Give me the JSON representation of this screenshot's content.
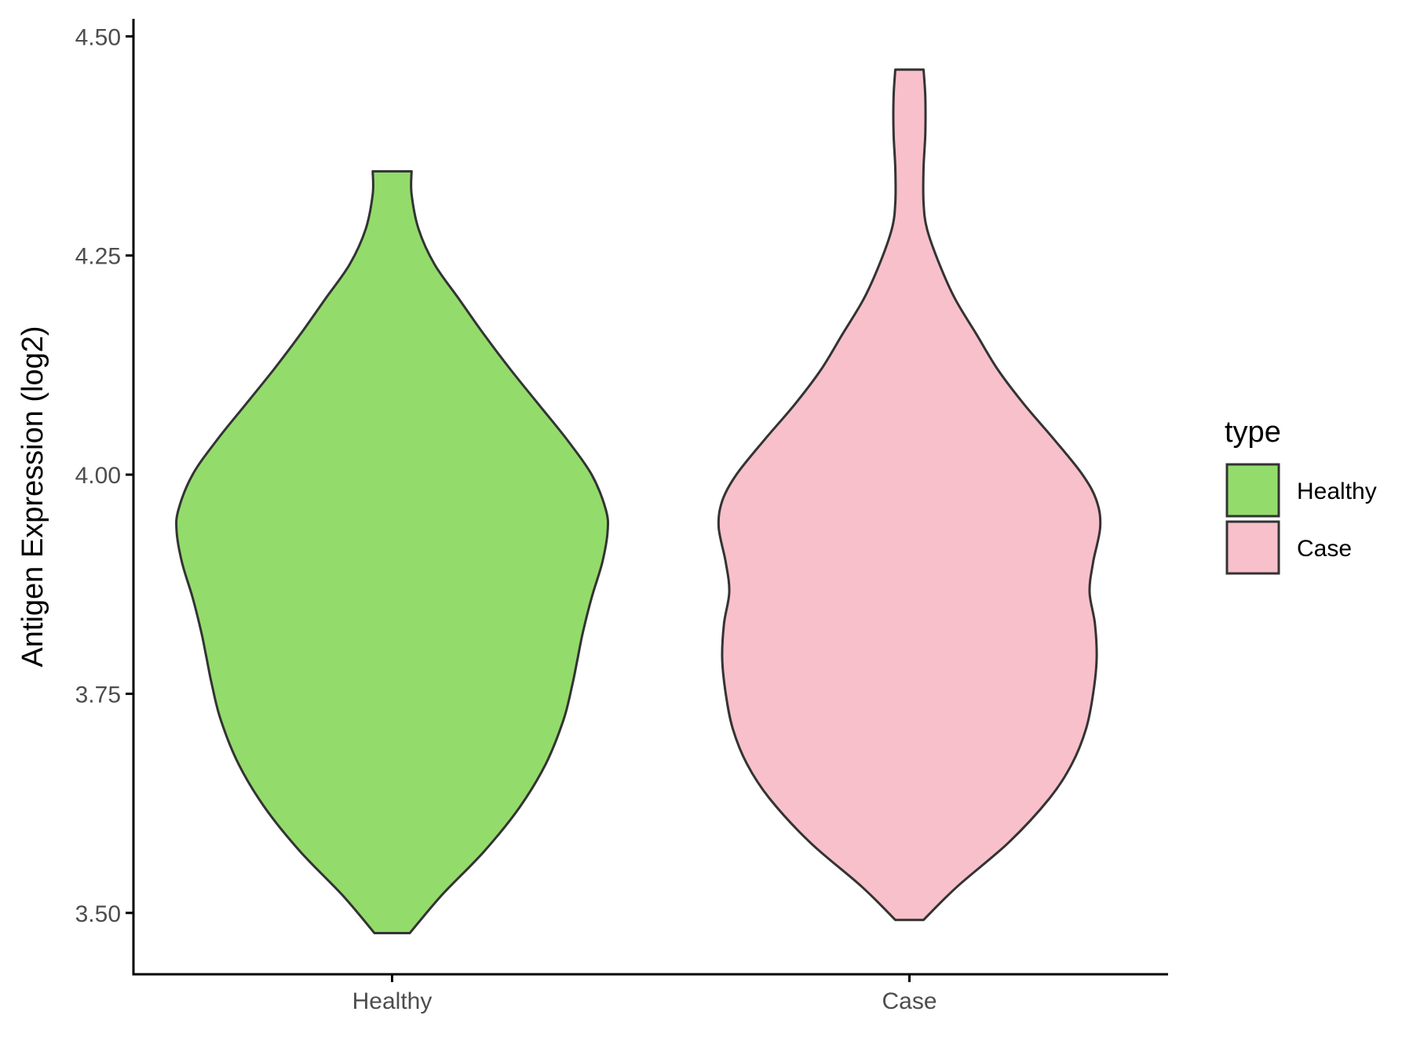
{
  "chart_data": {
    "type": "violin",
    "ylabel": "Antigen Expression (log2)",
    "xlabel": "",
    "categories": [
      "Healthy",
      "Case"
    ],
    "ylim": [
      3.43,
      4.52
    ],
    "yticks": [
      3.5,
      3.75,
      4.0,
      4.25,
      4.5
    ],
    "ytick_labels": [
      "3.50",
      "3.75",
      "4.00",
      "4.25",
      "4.50"
    ],
    "grid": false,
    "legend": {
      "title": "type",
      "position": "right",
      "entries": [
        {
          "label": "Healthy",
          "color": "#93dc6b"
        },
        {
          "label": "Case",
          "color": "#f8c0cb"
        }
      ]
    },
    "series": [
      {
        "category": "Healthy",
        "color": "#93dc6b",
        "min": 3.477,
        "max": 4.346,
        "profile": [
          [
            3.477,
            0.1
          ],
          [
            3.52,
            0.28
          ],
          [
            3.57,
            0.52
          ],
          [
            3.62,
            0.72
          ],
          [
            3.67,
            0.87
          ],
          [
            3.72,
            0.97
          ],
          [
            3.76,
            1.02
          ],
          [
            3.79,
            1.05
          ],
          [
            3.82,
            1.08
          ],
          [
            3.86,
            1.13
          ],
          [
            3.9,
            1.19
          ],
          [
            3.935,
            1.22
          ],
          [
            3.96,
            1.21
          ],
          [
            4.0,
            1.13
          ],
          [
            4.04,
            0.99
          ],
          [
            4.08,
            0.83
          ],
          [
            4.12,
            0.67
          ],
          [
            4.16,
            0.52
          ],
          [
            4.2,
            0.38
          ],
          [
            4.24,
            0.24
          ],
          [
            4.28,
            0.15
          ],
          [
            4.32,
            0.11
          ],
          [
            4.346,
            0.11
          ]
        ]
      },
      {
        "category": "Case",
        "color": "#f8c0cb",
        "min": 3.492,
        "max": 4.462,
        "profile": [
          [
            3.492,
            0.08
          ],
          [
            3.53,
            0.27
          ],
          [
            3.58,
            0.56
          ],
          [
            3.63,
            0.79
          ],
          [
            3.67,
            0.92
          ],
          [
            3.71,
            1.0
          ],
          [
            3.75,
            1.04
          ],
          [
            3.79,
            1.06
          ],
          [
            3.83,
            1.05
          ],
          [
            3.866,
            1.02
          ],
          [
            3.9,
            1.04
          ],
          [
            3.94,
            1.08
          ],
          [
            3.97,
            1.06
          ],
          [
            4.0,
            0.98
          ],
          [
            4.04,
            0.82
          ],
          [
            4.08,
            0.65
          ],
          [
            4.12,
            0.5
          ],
          [
            4.16,
            0.38
          ],
          [
            4.2,
            0.26
          ],
          [
            4.24,
            0.17
          ],
          [
            4.28,
            0.1
          ],
          [
            4.31,
            0.08
          ],
          [
            4.35,
            0.08
          ],
          [
            4.39,
            0.09
          ],
          [
            4.43,
            0.09
          ],
          [
            4.462,
            0.08
          ]
        ]
      }
    ]
  }
}
